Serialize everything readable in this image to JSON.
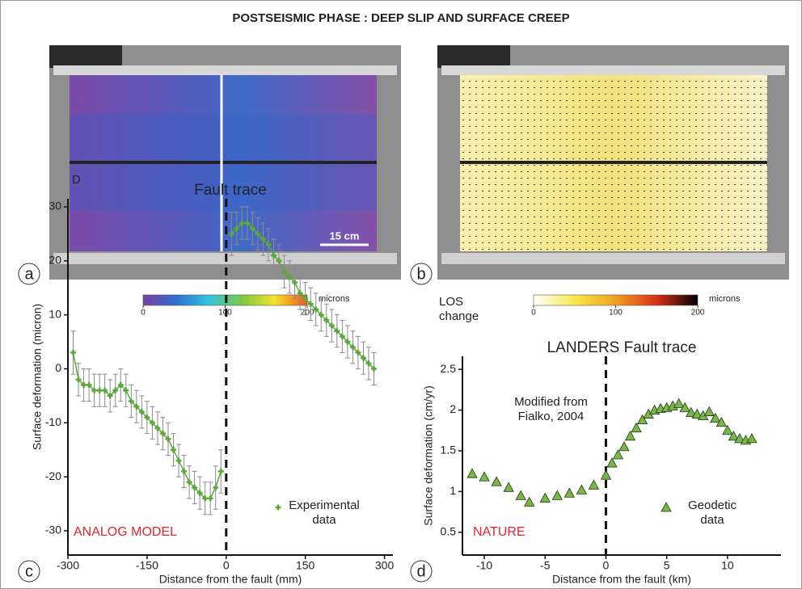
{
  "title": "POSTSEISMIC PHASE : DEEP SLIP AND SURFACE CREEP",
  "panel_labels": [
    "a",
    "b",
    "c",
    "d"
  ],
  "scale_bar": "15 cm",
  "colorbars": [
    {
      "ticks": [
        0,
        100,
        200
      ],
      "unit": "microns",
      "colors": [
        "#7a3fa0",
        "#2f6fd0",
        "#33c3e0",
        "#7cc642",
        "#f3e52a",
        "#f5541f"
      ]
    },
    {
      "ticks": [
        0,
        100,
        200
      ],
      "unit": "microns",
      "colors": [
        "#ffffff",
        "#f8e94a",
        "#f0a020",
        "#d8301a",
        "#000000"
      ]
    }
  ],
  "chart_data": [
    {
      "type": "scatter",
      "title": "Fault trace",
      "y_unit_label": "D",
      "x_label": "Distance from the fault (mm)",
      "y_label": "Surface deformation (micron)",
      "xlim": [
        -300,
        316
      ],
      "ylim": [
        -34.5,
        31.5
      ],
      "xticks": [
        -300,
        -150,
        0,
        150,
        300
      ],
      "yticks": [
        -30,
        -20,
        -10,
        0,
        10,
        20,
        30
      ],
      "legend": "lower right",
      "annotations": [
        {
          "text": "ANALOG MODEL",
          "color": "#e0242c"
        }
      ],
      "x": [
        -290,
        -280,
        -270,
        -260,
        -250,
        -240,
        -230,
        -220,
        -210,
        -200,
        -190,
        -180,
        -170,
        -160,
        -150,
        -140,
        -130,
        -120,
        -110,
        -100,
        -90,
        -80,
        -70,
        -60,
        -50,
        -40,
        -30,
        -20,
        -10,
        0,
        10,
        20,
        30,
        40,
        50,
        60,
        70,
        80,
        90,
        100,
        110,
        120,
        130,
        140,
        150,
        160,
        170,
        180,
        190,
        200,
        210,
        220,
        230,
        240,
        250,
        260,
        270,
        280
      ],
      "series": [
        {
          "name": "Experimental data",
          "color": "#5aa83a",
          "marker": "plus",
          "line": true,
          "error_color": "#8a8a8a",
          "values": [
            3,
            -2,
            -3,
            -3,
            -4,
            -4,
            -4,
            -5,
            -4,
            -3,
            -4,
            -6,
            -7,
            -8,
            -9,
            -10,
            -11,
            -12,
            -13,
            -15,
            -17,
            -19,
            -21,
            -22,
            -23,
            -24,
            -24,
            -22,
            -19,
            null,
            25,
            26,
            27,
            27,
            26,
            25,
            24,
            23,
            21,
            20,
            18,
            17,
            16,
            14,
            13,
            12,
            11,
            10,
            9,
            8,
            7,
            6,
            5,
            4,
            3,
            2,
            1,
            0
          ],
          "errors": [
            4,
            3,
            3,
            3,
            3,
            3,
            3,
            3,
            3,
            3,
            3,
            3,
            3,
            3,
            3,
            3,
            3,
            3,
            3,
            3,
            3,
            3,
            3,
            3,
            3,
            3,
            3,
            4,
            4,
            null,
            4,
            3,
            3,
            3,
            3,
            3,
            3,
            3,
            3,
            3,
            3,
            3,
            3,
            3,
            3,
            3,
            3,
            3,
            3,
            3,
            3,
            3,
            3,
            3,
            3,
            3,
            3,
            3
          ]
        }
      ]
    },
    {
      "type": "scatter",
      "title": "LANDERS Fault trace",
      "y_unit_label": "LOS change",
      "x_label": "Distance from the fault (km)",
      "y_label": "Surface deformation (cm/yr)",
      "xlim": [
        -11.8,
        14.4
      ],
      "ylim": [
        0.22,
        2.66
      ],
      "xticks": [
        -10,
        -5,
        0,
        5,
        10
      ],
      "yticks": [
        0.5,
        1,
        1.5,
        2,
        2.5
      ],
      "legend": "lower right",
      "annotations": [
        {
          "text": "NATURE",
          "color": "#e0242c"
        },
        {
          "text": "Modified from Fialko, 2004",
          "color": "#222222"
        }
      ],
      "x": [
        -11,
        -10,
        -9,
        -8,
        -7,
        -6.3,
        -5,
        -4,
        -3,
        -2,
        -1,
        0,
        0.5,
        1,
        1.5,
        2,
        2.5,
        3,
        3.5,
        4,
        4.5,
        5,
        5.5,
        6,
        6.5,
        7,
        7.5,
        8,
        8.5,
        9,
        9.5,
        10,
        10.5,
        11,
        11.5,
        12
      ],
      "series": [
        {
          "name": "Geodetic data",
          "color": "#7ab648",
          "marker": "triangle",
          "line": false,
          "values": [
            1.22,
            1.18,
            1.12,
            1.05,
            0.95,
            0.87,
            0.92,
            0.95,
            0.98,
            1.02,
            1.08,
            1.2,
            1.35,
            1.45,
            1.55,
            1.68,
            1.78,
            1.88,
            1.95,
            2.0,
            2.02,
            2.03,
            2.05,
            2.08,
            2.03,
            1.97,
            1.95,
            1.93,
            1.98,
            1.9,
            1.85,
            1.75,
            1.68,
            1.65,
            1.63,
            1.65
          ]
        }
      ]
    }
  ]
}
